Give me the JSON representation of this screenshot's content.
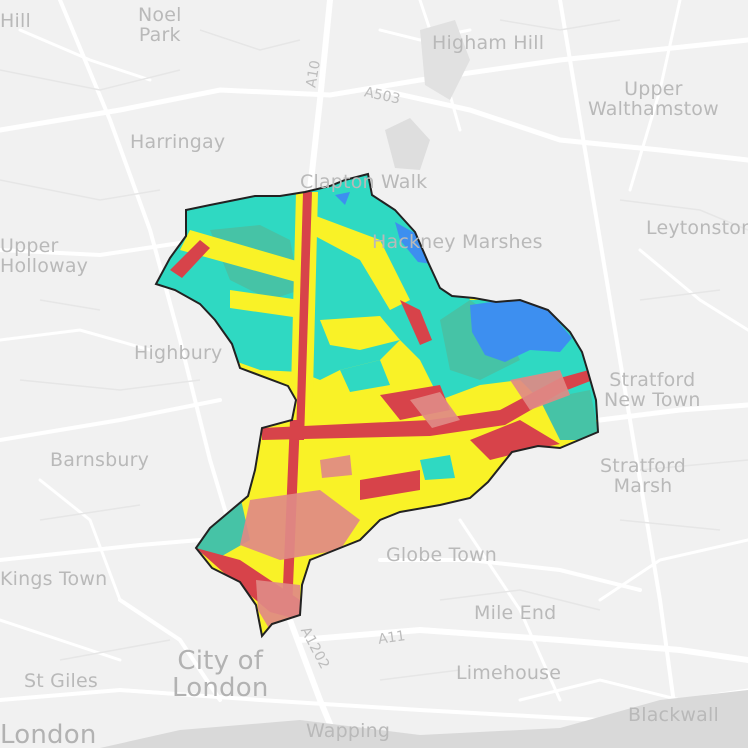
{
  "map": {
    "labels": {
      "hill": "Hill",
      "noel_park": "Noel\nPark",
      "higham_hill": "Higham Hill",
      "upper_walthamstow": "Upper\nWalthamstow",
      "harringay": "Harringay",
      "clapton_walk": "Clapton Walk",
      "marshes": "Hackney Marshes",
      "leytonstone": "Leytonstone",
      "upper_holloway": "Upper\nHolloway",
      "highbury": "Highbury",
      "stratford_new_town": "Stratford\nNew Town",
      "barnsbury": "Barnsbury",
      "stratford_marsh": "Stratford\nMarsh",
      "globe_town": "Globe Town",
      "kings_town": "Kings Town",
      "mile_end": "Mile End",
      "city_of_london": "City of\nLondon",
      "st_giles": "St Giles",
      "limehouse": "Limehouse",
      "london": "London",
      "wapping": "Wapping",
      "blackwall": "Blackwall"
    },
    "roads": {
      "a10": "A10",
      "a503": "A503",
      "a11": "A11",
      "a1202": "A1202"
    },
    "overlay_colors": {
      "blue": "#3d8ff0",
      "cyan": "#2fd9c2",
      "teal": "#46c3a6",
      "yellow": "#f9f227",
      "red": "#d7434a",
      "pink": "#e08a86"
    }
  }
}
